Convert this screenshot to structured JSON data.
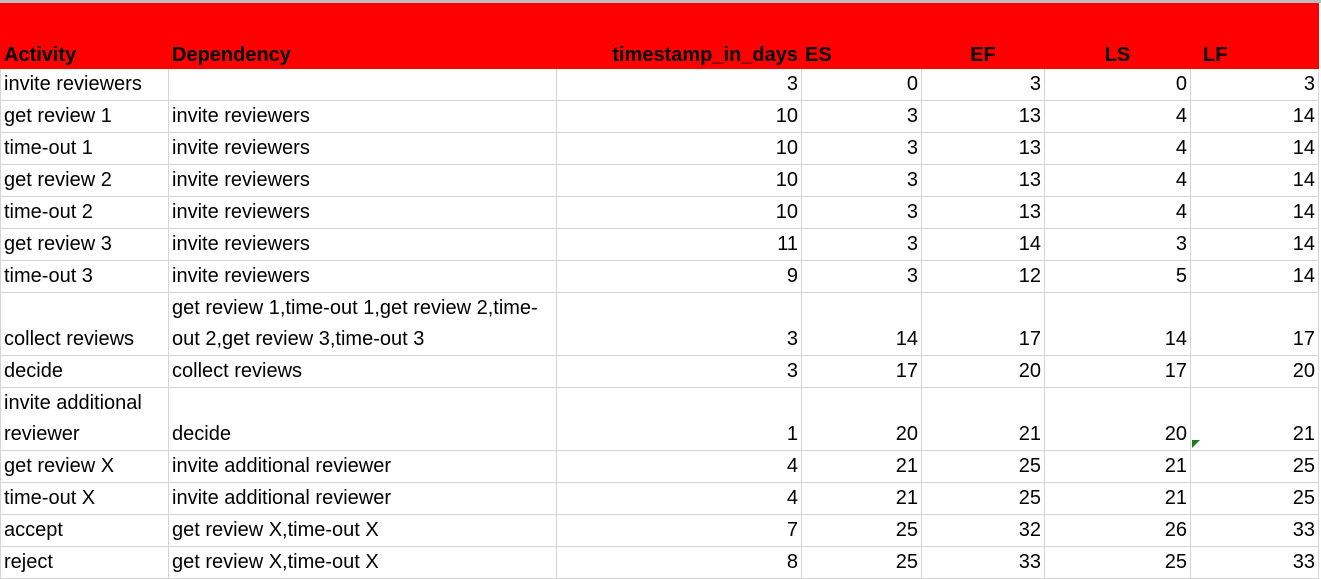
{
  "headers": [
    "Activity",
    "Dependency",
    "timestamp_in_days",
    "ES",
    "EF",
    "LS",
    "LF"
  ],
  "rows": [
    [
      "invite reviewers",
      "",
      "3",
      "0",
      "3",
      "0",
      "3"
    ],
    [
      "get review 1",
      "invite reviewers",
      "10",
      "3",
      "13",
      "4",
      "14"
    ],
    [
      "time-out 1",
      "invite reviewers",
      "10",
      "3",
      "13",
      "4",
      "14"
    ],
    [
      "get review 2",
      "invite reviewers",
      "10",
      "3",
      "13",
      "4",
      "14"
    ],
    [
      "time-out 2",
      "invite reviewers",
      "10",
      "3",
      "13",
      "4",
      "14"
    ],
    [
      "get review 3",
      "invite reviewers",
      "11",
      "3",
      "14",
      "3",
      "14"
    ],
    [
      "time-out 3",
      "invite reviewers",
      "9",
      "3",
      "12",
      "5",
      "14"
    ],
    [
      "collect reviews",
      "get review 1,time-out 1,get review 2,time-out 2,get review 3,time-out 3",
      "3",
      "14",
      "17",
      "14",
      "17"
    ],
    [
      "decide",
      "collect reviews",
      "3",
      "17",
      "20",
      "17",
      "20"
    ],
    [
      "invite additional reviewer",
      "decide",
      "1",
      "20",
      "21",
      "20",
      "21"
    ],
    [
      "get review X",
      "invite additional reviewer",
      "4",
      "21",
      "25",
      "21",
      "25"
    ],
    [
      "time-out X",
      "invite additional reviewer",
      "4",
      "21",
      "25",
      "21",
      "25"
    ],
    [
      "accept",
      "get review X,time-out X",
      "7",
      "25",
      "32",
      "26",
      "33"
    ],
    [
      "reject",
      "get review X,time-out X",
      "8",
      "25",
      "33",
      "25",
      "33"
    ]
  ],
  "colors": {
    "header_fill": "#ff0000",
    "comment_marker": "#1a7f1a"
  }
}
